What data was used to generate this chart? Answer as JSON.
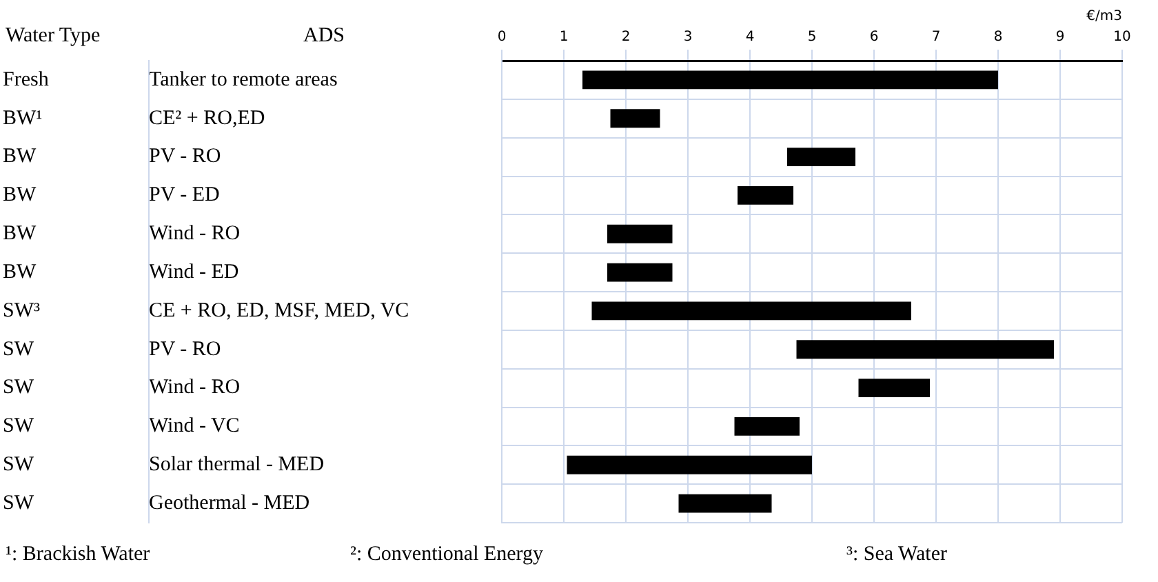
{
  "chart_data": {
    "type": "bar",
    "orientation": "horizontal",
    "categories": [
      "Tanker to remote areas",
      "CE² + RO,ED",
      "PV - RO",
      "PV - ED",
      "Wind - RO",
      "Wind - ED",
      "CE + RO, ED, MSF, MED, VC",
      "PV - RO",
      "Wind - RO",
      "Wind - VC",
      "Solar thermal - MED",
      "Geothermal - MED"
    ],
    "y2_categories": [
      "Fresh",
      "BW¹",
      "BW",
      "BW",
      "BW",
      "BW",
      "SW³",
      "SW",
      "SW",
      "SW",
      "SW",
      "SW"
    ],
    "base": [
      1.3,
      1.75,
      4.6,
      3.8,
      1.7,
      1.7,
      1.45,
      4.75,
      5.75,
      3.75,
      1.05,
      2.85
    ],
    "values": [
      6.7,
      0.8,
      1.1,
      0.9,
      1.05,
      1.05,
      5.15,
      4.15,
      1.15,
      1.05,
      3.95,
      1.5
    ],
    "color": "#000000",
    "xlabel": "€/m3",
    "xlim": [
      0,
      10
    ],
    "xticks": [
      0,
      1,
      2,
      3,
      4,
      5,
      6,
      7,
      8,
      9,
      10
    ],
    "grid": true,
    "legend": false,
    "annotations": [
      "Water Type",
      "ADS",
      "¹: Brackish Water",
      "²: Conventional Energy",
      "³: Sea Water"
    ]
  }
}
